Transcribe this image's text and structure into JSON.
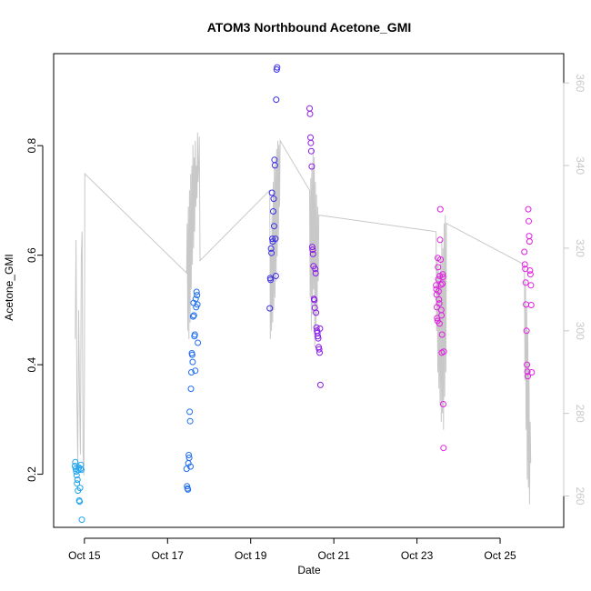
{
  "chart_data": {
    "type": "scatter",
    "title": "ATOM3 Northbound Acetone_GMI",
    "xlabel": "Date",
    "ylabel": "Acetone_GMI",
    "xlim": [
      "2017-10-14T06:14",
      "2017-10-26T12:43"
    ],
    "ylim": [
      0.103,
      0.968
    ],
    "y2lim": [
      252.4,
      367.1
    ],
    "x_ticks": [
      {
        "date": "2017-10-15T00:00",
        "label": "Oct 15"
      },
      {
        "date": "2017-10-17T00:00",
        "label": "Oct 17"
      },
      {
        "date": "2017-10-19T00:00",
        "label": "Oct 19"
      },
      {
        "date": "2017-10-21T00:00",
        "label": "Oct 21"
      },
      {
        "date": "2017-10-23T00:00",
        "label": "Oct 23"
      },
      {
        "date": "2017-10-25T00:00",
        "label": "Oct 25"
      }
    ],
    "y_ticks": [
      0.2,
      0.4,
      0.6,
      0.8
    ],
    "y_tick_labels": [
      "0.2",
      "0.4",
      "0.6",
      "0.8"
    ],
    "y2_ticks": [
      260,
      280,
      300,
      320,
      340,
      360
    ],
    "y2_tick_labels": [
      "260",
      "280",
      "300",
      "320",
      "340",
      "360"
    ],
    "colors": {
      "line": "#c8c8c8",
      "axis": "#000000",
      "right_axis": "#c8c8c8",
      "points": [
        "#1fa3f0",
        "#1f6ef0",
        "#3b2ee8",
        "#8a1ae8",
        "#e01fe0"
      ]
    },
    "series_secondary_line": [
      [
        "2017-10-14T18:45",
        298
      ],
      [
        "2017-10-14T19:10",
        322
      ],
      [
        "2017-10-14T19:40",
        283
      ],
      [
        "2017-10-14T20:10",
        268
      ],
      [
        "2017-10-14T20:40",
        305
      ],
      [
        "2017-10-14T21:10",
        286
      ],
      [
        "2017-10-14T21:40",
        270
      ],
      [
        "2017-10-14T22:10",
        318
      ],
      [
        "2017-10-14T22:40",
        324
      ],
      [
        "2017-10-14T23:10",
        271
      ],
      [
        "2017-10-14T23:40",
        265
      ],
      [
        "2017-10-15T00:00",
        285
      ],
      [
        "2017-10-15T00:15",
        338
      ],
      [
        "2017-10-17T11:00",
        314
      ],
      [
        "2017-10-17T11:20",
        326
      ],
      [
        "2017-10-17T11:40",
        300
      ],
      [
        "2017-10-17T12:00",
        330
      ],
      [
        "2017-10-17T12:20",
        298
      ],
      [
        "2017-10-17T12:40",
        334
      ],
      [
        "2017-10-17T13:00",
        302
      ],
      [
        "2017-10-17T13:20",
        338
      ],
      [
        "2017-10-17T13:40",
        310
      ],
      [
        "2017-10-17T14:00",
        340
      ],
      [
        "2017-10-17T14:20",
        316
      ],
      [
        "2017-10-17T14:40",
        345
      ],
      [
        "2017-10-17T15:00",
        320
      ],
      [
        "2017-10-17T15:20",
        342
      ],
      [
        "2017-10-17T15:40",
        324
      ],
      [
        "2017-10-17T16:00",
        346
      ],
      [
        "2017-10-17T16:20",
        330
      ],
      [
        "2017-10-17T16:40",
        340
      ],
      [
        "2017-10-17T17:00",
        332
      ],
      [
        "2017-10-17T17:20",
        348
      ],
      [
        "2017-10-17T17:40",
        336
      ],
      [
        "2017-10-17T18:00",
        340
      ],
      [
        "2017-10-17T18:20",
        347
      ],
      [
        "2017-10-17T18:45",
        317
      ],
      [
        "2017-10-19T11:00",
        334
      ],
      [
        "2017-10-19T11:20",
        298
      ],
      [
        "2017-10-19T11:40",
        320
      ],
      [
        "2017-10-19T12:00",
        300
      ],
      [
        "2017-10-19T12:20",
        328
      ],
      [
        "2017-10-19T12:40",
        302
      ],
      [
        "2017-10-19T13:00",
        336
      ],
      [
        "2017-10-19T13:20",
        305
      ],
      [
        "2017-10-19T13:40",
        340
      ],
      [
        "2017-10-19T14:00",
        308
      ],
      [
        "2017-10-19T14:20",
        342
      ],
      [
        "2017-10-19T14:40",
        312
      ],
      [
        "2017-10-19T15:00",
        344
      ],
      [
        "2017-10-19T15:20",
        318
      ],
      [
        "2017-10-19T15:40",
        346
      ],
      [
        "2017-10-19T16:00",
        322
      ],
      [
        "2017-10-19T16:20",
        345
      ],
      [
        "2017-10-19T16:40",
        330
      ],
      [
        "2017-10-19T17:00",
        346
      ],
      [
        "2017-10-20T10:00",
        334
      ],
      [
        "2017-10-20T10:20",
        308
      ],
      [
        "2017-10-20T10:40",
        337
      ],
      [
        "2017-10-20T11:00",
        300
      ],
      [
        "2017-10-20T11:20",
        340
      ],
      [
        "2017-10-20T11:40",
        304
      ],
      [
        "2017-10-20T12:00",
        344
      ],
      [
        "2017-10-20T12:20",
        310
      ],
      [
        "2017-10-20T12:40",
        342
      ],
      [
        "2017-10-20T13:00",
        296
      ],
      [
        "2017-10-20T13:20",
        336
      ],
      [
        "2017-10-20T13:40",
        300
      ],
      [
        "2017-10-20T14:00",
        333
      ],
      [
        "2017-10-20T14:20",
        304
      ],
      [
        "2017-10-20T14:40",
        330
      ],
      [
        "2017-10-20T15:00",
        312
      ],
      [
        "2017-10-20T15:20",
        328
      ],
      [
        "2017-10-23T11:00",
        324
      ],
      [
        "2017-10-23T11:20",
        300
      ],
      [
        "2017-10-23T11:40",
        318
      ],
      [
        "2017-10-23T12:00",
        290
      ],
      [
        "2017-10-23T12:20",
        316
      ],
      [
        "2017-10-23T12:40",
        286
      ],
      [
        "2017-10-23T13:00",
        314
      ],
      [
        "2017-10-23T13:20",
        282
      ],
      [
        "2017-10-23T13:40",
        318
      ],
      [
        "2017-10-23T14:00",
        278
      ],
      [
        "2017-10-23T14:20",
        322
      ],
      [
        "2017-10-23T14:40",
        280
      ],
      [
        "2017-10-23T15:00",
        320
      ],
      [
        "2017-10-23T15:20",
        276
      ],
      [
        "2017-10-23T15:40",
        326
      ],
      [
        "2017-10-23T16:00",
        284
      ],
      [
        "2017-10-23T16:20",
        328
      ],
      [
        "2017-10-23T16:40",
        290
      ],
      [
        "2017-10-23T17:00",
        326
      ],
      [
        "2017-10-25T14:00",
        316
      ],
      [
        "2017-10-25T14:20",
        288
      ],
      [
        "2017-10-25T14:40",
        312
      ],
      [
        "2017-10-25T15:00",
        276
      ],
      [
        "2017-10-25T15:20",
        306
      ],
      [
        "2017-10-25T15:40",
        264
      ],
      [
        "2017-10-25T16:00",
        300
      ],
      [
        "2017-10-25T16:20",
        262
      ],
      [
        "2017-10-25T16:40",
        292
      ],
      [
        "2017-10-25T17:00",
        258
      ],
      [
        "2017-10-25T17:20",
        278
      ],
      [
        "2017-10-25T17:40",
        268
      ]
    ],
    "groups": [
      {
        "color_index": 0,
        "points": [
          [
            "2017-10-14T18:30",
            0.215
          ],
          [
            "2017-10-14T18:45",
            0.222
          ],
          [
            "2017-10-14T19:00",
            0.21
          ],
          [
            "2017-10-14T19:15",
            0.205
          ],
          [
            "2017-10-14T19:30",
            0.198
          ],
          [
            "2017-10-14T19:45",
            0.183
          ],
          [
            "2017-10-14T20:00",
            0.19
          ],
          [
            "2017-10-14T20:15",
            0.17
          ],
          [
            "2017-10-14T20:30",
            0.208
          ],
          [
            "2017-10-14T20:45",
            0.212
          ],
          [
            "2017-10-14T21:00",
            0.152
          ],
          [
            "2017-10-14T21:15",
            0.15
          ],
          [
            "2017-10-14T21:30",
            0.175
          ],
          [
            "2017-10-14T21:45",
            0.21
          ],
          [
            "2017-10-14T22:00",
            0.217
          ],
          [
            "2017-10-14T22:15",
            0.208
          ],
          [
            "2017-10-14T22:30",
            0.117
          ]
        ]
      },
      {
        "color_index": 1,
        "points": [
          [
            "2017-10-17T11:00",
            0.21
          ],
          [
            "2017-10-17T11:15",
            0.178
          ],
          [
            "2017-10-17T11:30",
            0.174
          ],
          [
            "2017-10-17T11:45",
            0.172
          ],
          [
            "2017-10-17T12:00",
            0.22
          ],
          [
            "2017-10-17T12:15",
            0.235
          ],
          [
            "2017-10-17T12:30",
            0.23
          ],
          [
            "2017-10-17T12:45",
            0.314
          ],
          [
            "2017-10-17T13:00",
            0.297
          ],
          [
            "2017-10-17T13:15",
            0.214
          ],
          [
            "2017-10-17T13:30",
            0.356
          ],
          [
            "2017-10-17T13:45",
            0.386
          ],
          [
            "2017-10-17T14:00",
            0.421
          ],
          [
            "2017-10-17T14:15",
            0.418
          ],
          [
            "2017-10-17T14:30",
            0.405
          ],
          [
            "2017-10-17T14:45",
            0.488
          ],
          [
            "2017-10-17T15:00",
            0.513
          ],
          [
            "2017-10-17T15:15",
            0.49
          ],
          [
            "2017-10-17T15:30",
            0.452
          ],
          [
            "2017-10-17T15:45",
            0.455
          ],
          [
            "2017-10-17T16:00",
            0.389
          ],
          [
            "2017-10-17T16:15",
            0.52
          ],
          [
            "2017-10-17T16:30",
            0.505
          ],
          [
            "2017-10-17T16:45",
            0.533
          ],
          [
            "2017-10-17T17:00",
            0.527
          ],
          [
            "2017-10-17T17:15",
            0.51
          ],
          [
            "2017-10-17T17:30",
            0.44
          ]
        ]
      },
      {
        "color_index": 2,
        "points": [
          [
            "2017-10-19T11:00",
            0.503
          ],
          [
            "2017-10-19T11:15",
            0.558
          ],
          [
            "2017-10-19T11:30",
            0.555
          ],
          [
            "2017-10-19T11:45",
            0.612
          ],
          [
            "2017-10-19T12:00",
            0.604
          ],
          [
            "2017-10-19T12:15",
            0.714
          ],
          [
            "2017-10-19T12:30",
            0.63
          ],
          [
            "2017-10-19T12:45",
            0.625
          ],
          [
            "2017-10-19T13:00",
            0.68
          ],
          [
            "2017-10-19T13:15",
            0.703
          ],
          [
            "2017-10-19T13:30",
            0.653
          ],
          [
            "2017-10-19T13:45",
            0.774
          ],
          [
            "2017-10-19T14:00",
            0.764
          ],
          [
            "2017-10-19T14:15",
            0.63
          ],
          [
            "2017-10-19T14:30",
            0.562
          ],
          [
            "2017-10-19T14:45",
            0.884
          ],
          [
            "2017-10-19T15:00",
            0.939
          ],
          [
            "2017-10-19T15:15",
            0.943
          ]
        ]
      },
      {
        "color_index": 3,
        "points": [
          [
            "2017-10-20T10:00",
            0.868
          ],
          [
            "2017-10-20T10:15",
            0.858
          ],
          [
            "2017-10-20T10:30",
            0.815
          ],
          [
            "2017-10-20T10:45",
            0.805
          ],
          [
            "2017-10-20T11:00",
            0.79
          ],
          [
            "2017-10-20T11:15",
            0.762
          ],
          [
            "2017-10-20T11:30",
            0.615
          ],
          [
            "2017-10-20T11:45",
            0.61
          ],
          [
            "2017-10-20T12:00",
            0.602
          ],
          [
            "2017-10-20T12:15",
            0.58
          ],
          [
            "2017-10-20T12:30",
            0.52
          ],
          [
            "2017-10-20T12:45",
            0.518
          ],
          [
            "2017-10-20T13:00",
            0.504
          ],
          [
            "2017-10-20T13:15",
            0.575
          ],
          [
            "2017-10-20T13:30",
            0.567
          ],
          [
            "2017-10-20T13:45",
            0.495
          ],
          [
            "2017-10-20T14:00",
            0.468
          ],
          [
            "2017-10-20T14:15",
            0.462
          ],
          [
            "2017-10-20T14:30",
            0.458
          ],
          [
            "2017-10-20T14:45",
            0.452
          ],
          [
            "2017-10-20T15:00",
            0.448
          ],
          [
            "2017-10-20T15:15",
            0.432
          ],
          [
            "2017-10-20T15:30",
            0.428
          ],
          [
            "2017-10-20T15:45",
            0.422
          ],
          [
            "2017-10-20T16:00",
            0.466
          ],
          [
            "2017-10-20T16:15",
            0.363
          ]
        ]
      },
      {
        "color_index": 4,
        "points": [
          [
            "2017-10-23T11:00",
            0.545
          ],
          [
            "2017-10-23T11:10",
            0.538
          ],
          [
            "2017-10-23T11:20",
            0.528
          ],
          [
            "2017-10-23T11:30",
            0.505
          ],
          [
            "2017-10-23T11:40",
            0.485
          ],
          [
            "2017-10-23T11:50",
            0.48
          ],
          [
            "2017-10-23T12:00",
            0.595
          ],
          [
            "2017-10-23T12:10",
            0.578
          ],
          [
            "2017-10-23T12:20",
            0.556
          ],
          [
            "2017-10-23T12:30",
            0.534
          ],
          [
            "2017-10-23T12:40",
            0.519
          ],
          [
            "2017-10-23T12:50",
            0.512
          ],
          [
            "2017-10-23T13:00",
            0.475
          ],
          [
            "2017-10-23T13:10",
            0.562
          ],
          [
            "2017-10-23T13:20",
            0.628
          ],
          [
            "2017-10-23T13:30",
            0.684
          ],
          [
            "2017-10-23T13:40",
            0.592
          ],
          [
            "2017-10-23T13:50",
            0.546
          ],
          [
            "2017-10-23T14:00",
            0.5
          ],
          [
            "2017-10-23T14:10",
            0.49
          ],
          [
            "2017-10-23T14:20",
            0.422
          ],
          [
            "2017-10-23T14:30",
            0.455
          ],
          [
            "2017-10-23T14:40",
            0.548
          ],
          [
            "2017-10-23T14:50",
            0.565
          ],
          [
            "2017-10-23T15:00",
            0.56
          ],
          [
            "2017-10-23T15:10",
            0.328
          ],
          [
            "2017-10-23T15:20",
            0.248
          ],
          [
            "2017-10-23T15:30",
            0.424
          ]
        ]
      },
      {
        "color_index": 4,
        "points": [
          [
            "2017-10-25T14:00",
            0.606
          ],
          [
            "2017-10-25T14:15",
            0.583
          ],
          [
            "2017-10-25T14:30",
            0.575
          ],
          [
            "2017-10-25T14:45",
            0.55
          ],
          [
            "2017-10-25T15:00",
            0.51
          ],
          [
            "2017-10-25T15:15",
            0.462
          ],
          [
            "2017-10-25T15:30",
            0.4
          ],
          [
            "2017-10-25T15:45",
            0.387
          ],
          [
            "2017-10-25T16:00",
            0.379
          ],
          [
            "2017-10-25T16:15",
            0.684
          ],
          [
            "2017-10-25T16:30",
            0.662
          ],
          [
            "2017-10-25T16:45",
            0.635
          ],
          [
            "2017-10-25T17:00",
            0.625
          ],
          [
            "2017-10-25T17:15",
            0.572
          ],
          [
            "2017-10-25T17:30",
            0.565
          ],
          [
            "2017-10-25T17:45",
            0.545
          ],
          [
            "2017-10-25T18:00",
            0.509
          ],
          [
            "2017-10-25T18:15",
            0.386
          ]
        ]
      }
    ]
  }
}
